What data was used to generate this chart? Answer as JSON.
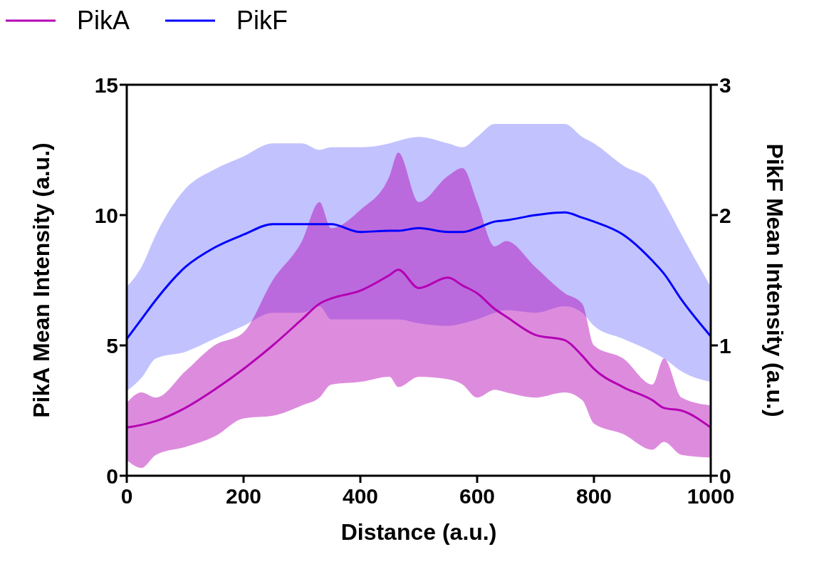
{
  "chart_data": {
    "type": "line",
    "xlabel": "Distance (a.u.)",
    "ylabel": "PikA Mean Intensity (a.u.)",
    "y2label": "PikF Mean Intensity (a.u.)",
    "x": [
      0,
      25,
      50,
      100,
      150,
      200,
      250,
      300,
      330,
      350,
      400,
      450,
      465,
      500,
      550,
      575,
      600,
      630,
      650,
      700,
      750,
      780,
      800,
      850,
      900,
      920,
      950,
      1000
    ],
    "xlim": [
      0,
      1000
    ],
    "xticks": [
      0,
      200,
      400,
      600,
      800,
      1000
    ],
    "ylim": [
      0,
      15
    ],
    "yticks": [
      0,
      5,
      10,
      15
    ],
    "y2lim": [
      0,
      3
    ],
    "y2ticks": [
      0,
      1,
      2,
      3
    ],
    "legend": "top left",
    "series": [
      {
        "name": "PikA",
        "color": "#b400b4",
        "values": [
          1.85,
          1.95,
          2.1,
          2.6,
          3.3,
          4.1,
          5.0,
          6.0,
          6.6,
          6.8,
          7.1,
          7.7,
          7.9,
          7.2,
          7.6,
          7.3,
          7.0,
          6.4,
          6.1,
          5.4,
          5.2,
          4.6,
          4.1,
          3.4,
          2.9,
          2.6,
          2.5,
          1.85
        ],
        "upper": [
          2.8,
          3.2,
          3.0,
          4.0,
          5.0,
          5.5,
          7.5,
          9.0,
          10.5,
          9.5,
          10.2,
          11.5,
          12.4,
          10.5,
          11.5,
          11.8,
          10.5,
          8.8,
          9.0,
          8.0,
          7.0,
          6.6,
          5.0,
          4.5,
          3.5,
          4.5,
          3.0,
          2.7
        ],
        "lower": [
          0.6,
          0.3,
          0.8,
          1.1,
          1.5,
          2.2,
          2.3,
          2.7,
          3.0,
          3.5,
          3.6,
          3.8,
          3.4,
          3.8,
          3.7,
          3.5,
          3.0,
          3.3,
          3.2,
          3.0,
          3.2,
          2.9,
          2.0,
          1.6,
          1.0,
          1.3,
          0.8,
          0.7
        ]
      },
      {
        "name": "PikF",
        "color": "#0000ff",
        "axis": "y2",
        "values": [
          1.05,
          1.2,
          1.35,
          1.6,
          1.75,
          1.85,
          1.93,
          1.93,
          1.93,
          1.93,
          1.87,
          1.88,
          1.88,
          1.9,
          1.87,
          1.87,
          1.9,
          1.95,
          1.96,
          2.0,
          2.02,
          1.98,
          1.95,
          1.85,
          1.65,
          1.55,
          1.35,
          1.07
        ],
        "upper": [
          1.45,
          1.6,
          1.85,
          2.2,
          2.35,
          2.45,
          2.55,
          2.55,
          2.5,
          2.52,
          2.52,
          2.55,
          2.57,
          2.6,
          2.55,
          2.52,
          2.6,
          2.7,
          2.7,
          2.7,
          2.7,
          2.6,
          2.55,
          2.38,
          2.25,
          2.1,
          1.85,
          1.45
        ],
        "lower": [
          0.65,
          0.75,
          0.9,
          0.95,
          1.05,
          1.15,
          1.25,
          1.25,
          1.3,
          1.2,
          1.2,
          1.2,
          1.2,
          1.17,
          1.15,
          1.17,
          1.2,
          1.25,
          1.27,
          1.25,
          1.3,
          1.25,
          1.15,
          1.05,
          0.95,
          0.9,
          0.8,
          0.72
        ]
      }
    ]
  }
}
